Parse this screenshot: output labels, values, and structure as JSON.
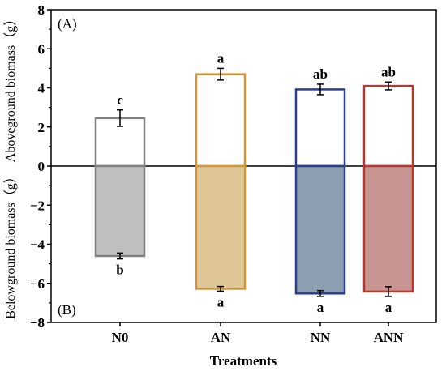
{
  "chart_data": {
    "type": "bar",
    "xlabel": "Treatments",
    "ylabel_top": "Aboveground biomass（g）",
    "ylabel_bottom": "Belowground biomass（g）",
    "panel_labels": [
      "(A)",
      "(B)"
    ],
    "categories": [
      "N0",
      "AN",
      "NN",
      "ANN"
    ],
    "ylim": [
      -8,
      8
    ],
    "yticks": [
      -8,
      -6,
      -4,
      -2,
      0,
      2,
      4,
      6,
      8
    ],
    "ytick_labels": [
      "−8",
      "−6",
      "−4",
      "−2",
      "0",
      "2",
      "4",
      "6",
      "8"
    ],
    "grid": false,
    "series": [
      {
        "values": [
          2.45,
          4.7,
          3.92,
          4.1
        ],
        "errors": [
          0.42,
          0.3,
          0.27,
          0.2
        ],
        "letters": [
          "c",
          "a",
          "ab",
          "ab"
        ],
        "fill": "none"
      },
      {
        "values": [
          -4.6,
          -6.28,
          -6.52,
          -6.42
        ],
        "errors": [
          0.15,
          0.12,
          0.15,
          0.25
        ],
        "letters": [
          "b",
          "a",
          "a",
          "a"
        ],
        "fill": "colored"
      }
    ],
    "colors": {
      "N0": {
        "edge": "#808080",
        "fill": "#c0c0c0"
      },
      "AN": {
        "edge": "#d4963c",
        "fill": "#dfc697"
      },
      "NN": {
        "edge": "#2a3f8a",
        "fill": "#8c9fb2"
      },
      "ANN": {
        "edge": "#b53a2e",
        "fill": "#c89491"
      }
    }
  }
}
